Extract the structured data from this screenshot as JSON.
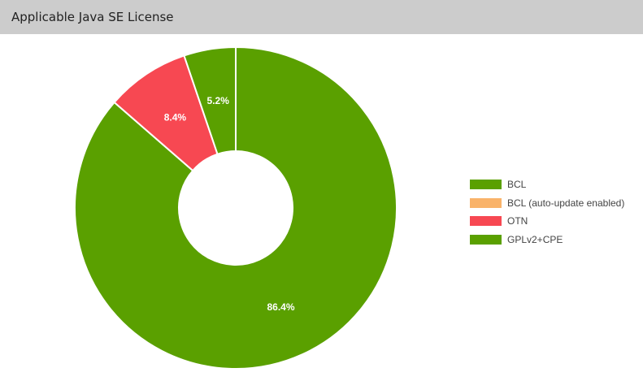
{
  "header": {
    "title": "Applicable Java SE License"
  },
  "chart_data": {
    "type": "pie",
    "variant": "donut",
    "title": "",
    "legend_position": "right",
    "slices": [
      {
        "label": "BCL",
        "value": 0,
        "color": "#5aa000",
        "display": ""
      },
      {
        "label": "BCL (auto-update enabled)",
        "value": 0,
        "color": "#f9b36a",
        "display": ""
      },
      {
        "label": "OTN",
        "value": 8.4,
        "color": "#f74852",
        "display": "8.4%"
      },
      {
        "label": "GPLv2+CPE",
        "value": 5.2,
        "color": "#5aa000",
        "display": "5.2%"
      }
    ],
    "remaining_slice": {
      "value": 86.4,
      "color": "#5aa000",
      "display": "86.4%"
    }
  }
}
